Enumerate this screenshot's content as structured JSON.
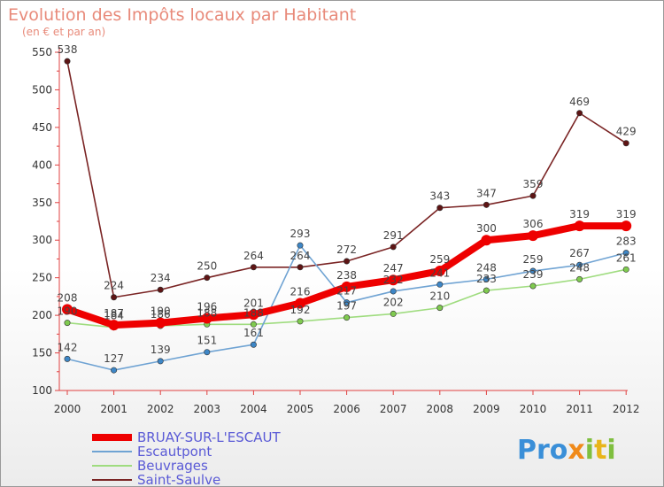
{
  "chart_data": {
    "type": "line",
    "title": "Evolution des Impôts locaux par Habitant",
    "subtitle": "(en € et par an)",
    "categories": [
      "2000",
      "2001",
      "2002",
      "2003",
      "2004",
      "2005",
      "2006",
      "2007",
      "2008",
      "2009",
      "2010",
      "2011",
      "2012"
    ],
    "ylim": [
      100,
      550
    ],
    "yticks": [
      100,
      150,
      200,
      250,
      300,
      350,
      400,
      450,
      500,
      550
    ],
    "grid": false,
    "legend_position": "bottom-left",
    "series": [
      {
        "name": "Saint-Saulve",
        "color": "#7a2424",
        "dot": "#5e1414",
        "values": [
          538,
          224,
          234,
          250,
          264,
          264,
          272,
          291,
          343,
          347,
          359,
          469,
          429
        ]
      },
      {
        "name": "Beuvrages",
        "color": "#9fdc7f",
        "dot": "#7fca4f",
        "values": [
          190,
          184,
          186,
          188,
          188,
          192,
          197,
          202,
          210,
          233,
          239,
          248,
          261
        ]
      },
      {
        "name": "Escautpont",
        "color": "#6fa3d3",
        "dot": "#3d86c6",
        "values": [
          142,
          127,
          139,
          151,
          161,
          293,
          217,
          232,
          241,
          248,
          259,
          267,
          283
        ]
      },
      {
        "name": "BRUAY-SUR-L'ESCAUT",
        "color": "#ee0000",
        "dot": "#ee0000",
        "values": [
          208,
          187,
          190,
          196,
          201,
          216,
          238,
          247,
          259,
          300,
          306,
          319,
          319
        ]
      }
    ]
  },
  "brand": {
    "pro": "Pro",
    "x": "x",
    "i": "i",
    "t": "t",
    "i2": "i"
  }
}
